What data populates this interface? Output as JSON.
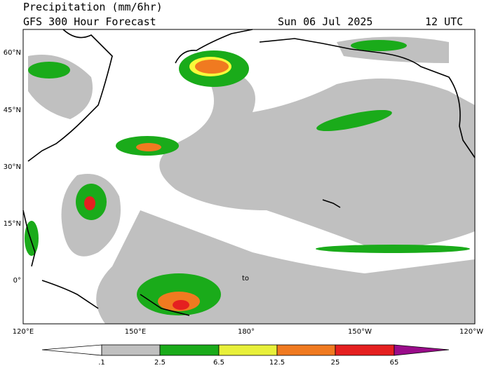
{
  "header": {
    "title": "Precipitation (mm/6hr)",
    "subtitle": "GFS 300 Hour Forecast",
    "date": "Sun 06 Jul 2025",
    "time": "12 UTC"
  },
  "map": {
    "lat_labels": [
      "60°N",
      "45°N",
      "30°N",
      "15°N",
      "0°"
    ],
    "lon_labels": [
      "120°E",
      "150°E",
      "180°",
      "150°W",
      "120°W"
    ],
    "annotation": "to"
  },
  "colorbar": {
    "labels": [
      ".1",
      "2.5",
      "6.5",
      "12.5",
      "25",
      "65"
    ]
  }
}
